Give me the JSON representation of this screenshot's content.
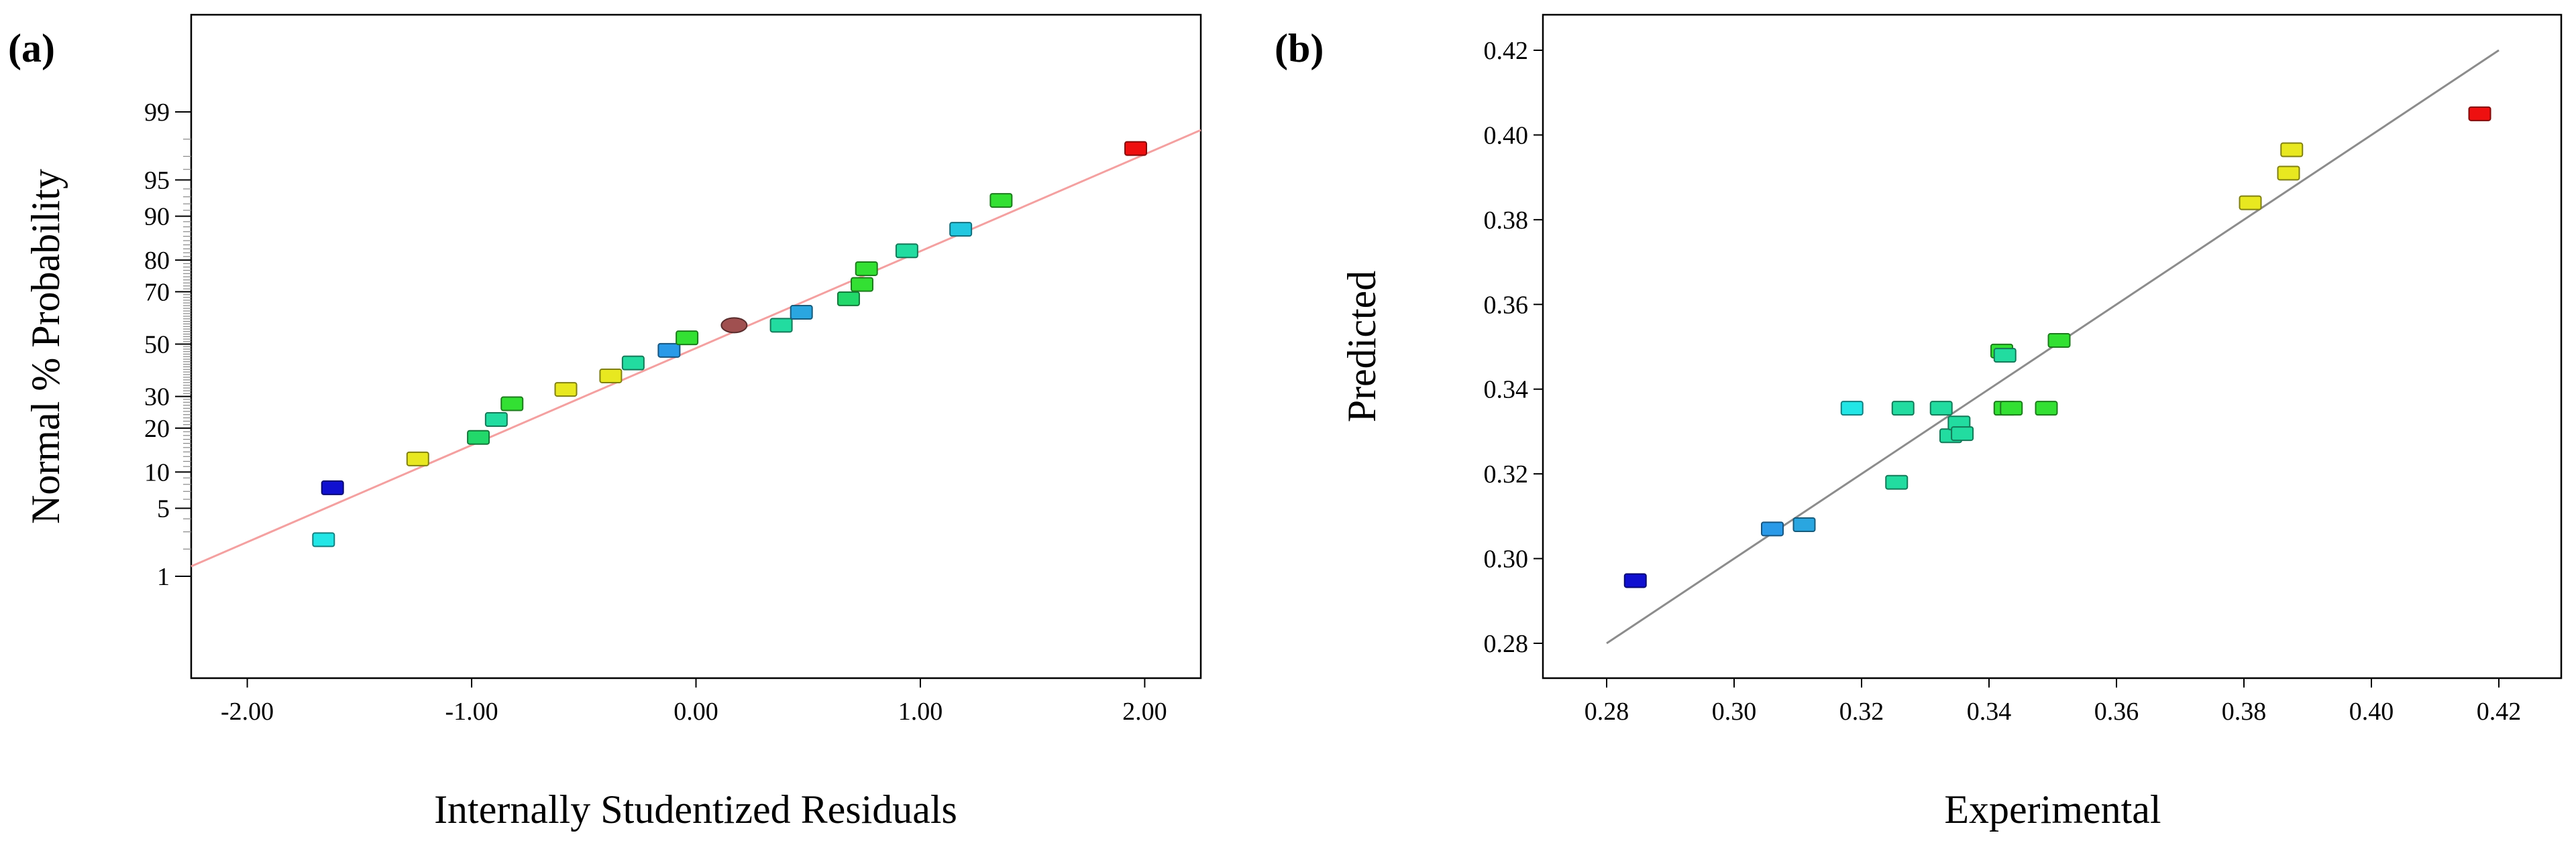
{
  "chart_data": [
    {
      "type": "scatter",
      "subtype": "normal-probability",
      "panel_label": "(a)",
      "xlabel": "Internally Studentized Residuals",
      "ylabel": "Normal % Probability",
      "xlim": [
        -2.25,
        2.25
      ],
      "x_ticks": [
        -2.0,
        -1.0,
        0.0,
        1.0,
        2.0
      ],
      "x_tick_labels": [
        "-2.00",
        "-1.00",
        "0.00",
        "1.00",
        "2.00"
      ],
      "y_scale": "normal-probability",
      "y_ticks": [
        1,
        5,
        10,
        20,
        30,
        50,
        70,
        80,
        90,
        95,
        99
      ],
      "y_tick_labels": [
        "1",
        "5",
        "10",
        "20",
        "30",
        "50",
        "70",
        "80",
        "90",
        "95",
        "99"
      ],
      "fit_line": {
        "x": [
          -2.25,
          2.25
        ],
        "y": [
          1.3,
          98.4
        ],
        "color": "#f4a0a0"
      },
      "points": [
        {
          "x": -1.66,
          "y": 2.5,
          "color": "#22e6e6"
        },
        {
          "x": -1.62,
          "y": 7.5,
          "color": "#1010d0"
        },
        {
          "x": -1.24,
          "y": 12.5,
          "color": "#e8e820"
        },
        {
          "x": -0.97,
          "y": 17.5,
          "color": "#22d86a"
        },
        {
          "x": -0.89,
          "y": 22.5,
          "color": "#22dca0"
        },
        {
          "x": -0.82,
          "y": 27.5,
          "color": "#33e033"
        },
        {
          "x": -0.58,
          "y": 32.5,
          "color": "#e8e820"
        },
        {
          "x": -0.38,
          "y": 37.5,
          "color": "#e8e820"
        },
        {
          "x": -0.28,
          "y": 42.5,
          "color": "#22dca0"
        },
        {
          "x": -0.12,
          "y": 47.5,
          "color": "#2a9ae8"
        },
        {
          "x": -0.04,
          "y": 52.5,
          "color": "#33e033"
        },
        {
          "x": 0.17,
          "y": 57.5,
          "color": "#a05050",
          "marker": "ellipse"
        },
        {
          "x": 0.38,
          "y": 57.5,
          "color": "#22dca0"
        },
        {
          "x": 0.47,
          "y": 62.5,
          "color": "#2aa6e0"
        },
        {
          "x": 0.68,
          "y": 67.5,
          "color": "#22d86a"
        },
        {
          "x": 0.74,
          "y": 72.5,
          "color": "#33e033"
        },
        {
          "x": 0.76,
          "y": 77.5,
          "color": "#33e033"
        },
        {
          "x": 0.94,
          "y": 82.5,
          "color": "#22dca0"
        },
        {
          "x": 1.18,
          "y": 87.5,
          "color": "#22c8e0"
        },
        {
          "x": 1.36,
          "y": 92.5,
          "color": "#33e033"
        },
        {
          "x": 1.96,
          "y": 97.5,
          "color": "#ee1010"
        }
      ]
    },
    {
      "type": "scatter",
      "subtype": "predicted-vs-actual",
      "panel_label": "(b)",
      "xlabel": "Experimental",
      "ylabel": "Predicted",
      "xlim": [
        0.27,
        0.425
      ],
      "ylim": [
        0.27,
        0.425
      ],
      "x_ticks": [
        0.28,
        0.3,
        0.32,
        0.34,
        0.36,
        0.38,
        0.4,
        0.42
      ],
      "x_tick_labels": [
        "0.28",
        "0.30",
        "0.32",
        "0.34",
        "0.36",
        "0.38",
        "0.40",
        "0.42"
      ],
      "y_ticks": [
        0.28,
        0.3,
        0.32,
        0.34,
        0.36,
        0.38,
        0.4,
        0.42
      ],
      "y_tick_labels": [
        "0.28",
        "0.30",
        "0.32",
        "0.34",
        "0.36",
        "0.38",
        "0.40",
        "0.42"
      ],
      "reference_line": {
        "x": [
          0.28,
          0.42
        ],
        "y": [
          0.28,
          0.42
        ],
        "color": "#8c8c8c"
      },
      "points": [
        {
          "x": 0.2845,
          "y": 0.2948,
          "color": "#1010d0"
        },
        {
          "x": 0.306,
          "y": 0.307,
          "color": "#2a9ae8"
        },
        {
          "x": 0.311,
          "y": 0.308,
          "color": "#2aa6e0"
        },
        {
          "x": 0.3185,
          "y": 0.3355,
          "color": "#22e6e6"
        },
        {
          "x": 0.3255,
          "y": 0.318,
          "color": "#22dca0"
        },
        {
          "x": 0.3265,
          "y": 0.3355,
          "color": "#22dca0"
        },
        {
          "x": 0.3325,
          "y": 0.3355,
          "color": "#22dca0"
        },
        {
          "x": 0.334,
          "y": 0.329,
          "color": "#22dca0"
        },
        {
          "x": 0.3353,
          "y": 0.332,
          "color": "#22dca0"
        },
        {
          "x": 0.3358,
          "y": 0.3295,
          "color": "#22dca0"
        },
        {
          "x": 0.3425,
          "y": 0.3355,
          "color": "#33e033"
        },
        {
          "x": 0.3435,
          "y": 0.3355,
          "color": "#33e033"
        },
        {
          "x": 0.342,
          "y": 0.349,
          "color": "#33e033"
        },
        {
          "x": 0.3425,
          "y": 0.348,
          "color": "#22dca0"
        },
        {
          "x": 0.349,
          "y": 0.3355,
          "color": "#33e033"
        },
        {
          "x": 0.351,
          "y": 0.3515,
          "color": "#33e033"
        },
        {
          "x": 0.381,
          "y": 0.384,
          "color": "#e8e820"
        },
        {
          "x": 0.387,
          "y": 0.391,
          "color": "#e8e820"
        },
        {
          "x": 0.3875,
          "y": 0.3965,
          "color": "#e8e820"
        },
        {
          "x": 0.417,
          "y": 0.405,
          "color": "#ee1010"
        }
      ]
    }
  ]
}
